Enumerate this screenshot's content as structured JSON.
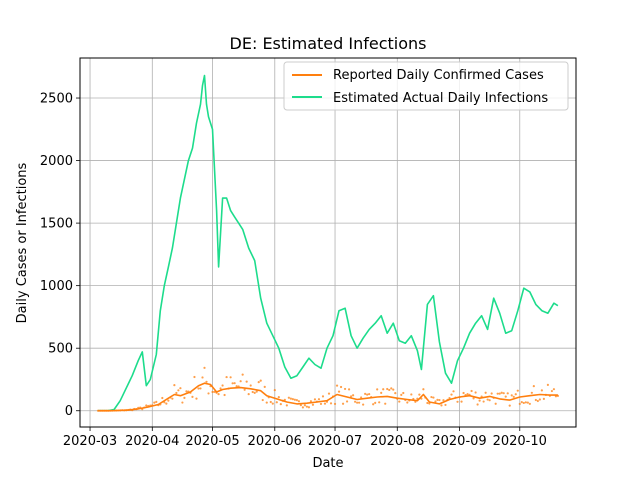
{
  "chart_data": {
    "type": "line",
    "title": "DE: Estimated Infections",
    "xlabel": "Date",
    "ylabel": "Daily Cases or Infections",
    "xlim": [
      "2020-02-25",
      "2020-10-29"
    ],
    "ylim": [
      -130,
      2820
    ],
    "x_ticks": [
      "2020-03-01",
      "2020-04-01",
      "2020-05-01",
      "2020-06-01",
      "2020-07-01",
      "2020-08-01",
      "2020-09-01",
      "2020-10-01"
    ],
    "x_tick_labels": [
      "2020-03",
      "2020-04",
      "2020-05",
      "2020-06",
      "2020-07",
      "2020-08",
      "2020-09",
      "2020-10"
    ],
    "y_ticks": [
      0,
      500,
      1000,
      1500,
      2000,
      2500
    ],
    "y_tick_labels": [
      "0",
      "500",
      "1000",
      "1500",
      "2000",
      "2500"
    ],
    "grid": true,
    "legend_position": "top-right",
    "series": [
      {
        "name": "Reported Daily Confirmed Cases",
        "color": "#ff7f0e",
        "x": [
          "2020-03-05",
          "2020-03-10",
          "2020-03-15",
          "2020-03-20",
          "2020-03-25",
          "2020-03-30",
          "2020-04-04",
          "2020-04-09",
          "2020-04-12",
          "2020-04-15",
          "2020-04-20",
          "2020-04-24",
          "2020-04-27",
          "2020-04-30",
          "2020-05-03",
          "2020-05-06",
          "2020-05-10",
          "2020-05-15",
          "2020-05-20",
          "2020-05-25",
          "2020-05-28",
          "2020-06-02",
          "2020-06-07",
          "2020-06-12",
          "2020-06-17",
          "2020-06-22",
          "2020-06-27",
          "2020-07-02",
          "2020-07-07",
          "2020-07-12",
          "2020-07-17",
          "2020-07-22",
          "2020-07-27",
          "2020-08-01",
          "2020-08-06",
          "2020-08-11",
          "2020-08-14",
          "2020-08-17",
          "2020-08-22",
          "2020-08-27",
          "2020-09-01",
          "2020-09-06",
          "2020-09-11",
          "2020-09-16",
          "2020-09-21",
          "2020-09-26",
          "2020-10-01",
          "2020-10-06",
          "2020-10-11",
          "2020-10-16",
          "2020-10-20"
        ],
        "values": [
          0,
          0,
          2,
          5,
          15,
          30,
          50,
          100,
          130,
          120,
          150,
          200,
          220,
          210,
          150,
          170,
          180,
          185,
          175,
          160,
          120,
          95,
          70,
          55,
          60,
          70,
          80,
          130,
          110,
          90,
          100,
          110,
          115,
          100,
          90,
          80,
          130,
          70,
          55,
          90,
          110,
          120,
          100,
          115,
          95,
          85,
          110,
          120,
          130,
          125,
          125
        ]
      },
      {
        "name": "Estimated Actual Daily Infections",
        "color": "#1ddc8c",
        "x": [
          "2020-03-05",
          "2020-03-10",
          "2020-03-13",
          "2020-03-16",
          "2020-03-19",
          "2020-03-22",
          "2020-03-25",
          "2020-03-27",
          "2020-03-29",
          "2020-03-31",
          "2020-04-03",
          "2020-04-05",
          "2020-04-07",
          "2020-04-09",
          "2020-04-11",
          "2020-04-13",
          "2020-04-15",
          "2020-04-17",
          "2020-04-19",
          "2020-04-21",
          "2020-04-23",
          "2020-04-25",
          "2020-04-26",
          "2020-04-27",
          "2020-04-28",
          "2020-04-29",
          "2020-05-01",
          "2020-05-03",
          "2020-05-04",
          "2020-05-06",
          "2020-05-08",
          "2020-05-10",
          "2020-05-12",
          "2020-05-14",
          "2020-05-16",
          "2020-05-19",
          "2020-05-22",
          "2020-05-25",
          "2020-05-28",
          "2020-05-31",
          "2020-06-03",
          "2020-06-06",
          "2020-06-09",
          "2020-06-12",
          "2020-06-15",
          "2020-06-18",
          "2020-06-21",
          "2020-06-24",
          "2020-06-27",
          "2020-06-30",
          "2020-07-03",
          "2020-07-06",
          "2020-07-09",
          "2020-07-12",
          "2020-07-15",
          "2020-07-18",
          "2020-07-21",
          "2020-07-24",
          "2020-07-27",
          "2020-07-30",
          "2020-08-02",
          "2020-08-05",
          "2020-08-08",
          "2020-08-11",
          "2020-08-13",
          "2020-08-16",
          "2020-08-19",
          "2020-08-22",
          "2020-08-25",
          "2020-08-28",
          "2020-08-31",
          "2020-09-03",
          "2020-09-06",
          "2020-09-09",
          "2020-09-12",
          "2020-09-15",
          "2020-09-18",
          "2020-09-21",
          "2020-09-24",
          "2020-09-27",
          "2020-09-30",
          "2020-10-03",
          "2020-10-06",
          "2020-10-09",
          "2020-10-12",
          "2020-10-15",
          "2020-10-18",
          "2020-10-20"
        ],
        "values": [
          0,
          0,
          10,
          80,
          180,
          280,
          400,
          470,
          200,
          250,
          450,
          800,
          1000,
          1150,
          1300,
          1500,
          1700,
          1850,
          2000,
          2100,
          2300,
          2450,
          2600,
          2680,
          2450,
          2350,
          2250,
          1600,
          1150,
          1700,
          1700,
          1600,
          1550,
          1500,
          1450,
          1300,
          1200,
          900,
          700,
          600,
          500,
          350,
          260,
          280,
          350,
          420,
          370,
          340,
          500,
          600,
          800,
          820,
          600,
          500,
          580,
          650,
          700,
          760,
          620,
          700,
          560,
          540,
          600,
          480,
          330,
          850,
          920,
          550,
          300,
          220,
          400,
          500,
          620,
          700,
          760,
          650,
          900,
          780,
          620,
          640,
          800,
          980,
          950,
          850,
          800,
          780,
          860,
          840
        ]
      }
    ],
    "scatter_color": "#ff7f0e"
  }
}
